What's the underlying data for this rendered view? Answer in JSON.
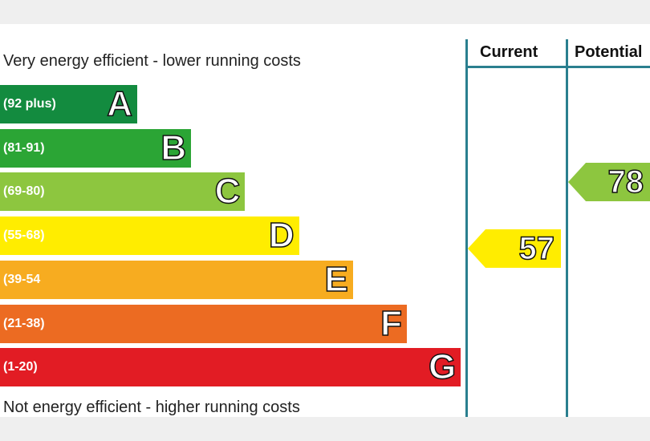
{
  "chart_data": {
    "type": "bar",
    "top_caption": "Very energy efficient - lower running costs",
    "bottom_caption": "Not energy efficient - higher running costs",
    "bands": [
      {
        "letter": "A",
        "range": "(92 plus)",
        "color": "#138b3f"
      },
      {
        "letter": "B",
        "range": "(81-91)",
        "color": "#2ba535"
      },
      {
        "letter": "C",
        "range": "(69-80)",
        "color": "#8dc63f"
      },
      {
        "letter": "D",
        "range": "(55-68)",
        "color": "#ffed00"
      },
      {
        "letter": "E",
        "range": "(39-54",
        "color": "#f7ac20"
      },
      {
        "letter": "F",
        "range": "(21-38)",
        "color": "#ec6b22"
      },
      {
        "letter": "G",
        "range": "(1-20)",
        "color": "#e21c24"
      }
    ],
    "columns": {
      "current": "Current",
      "potential": "Potential"
    },
    "current": {
      "value": "57",
      "band": "D",
      "color": "#ffed00"
    },
    "potential": {
      "value": "78",
      "band": "C",
      "color": "#8dc63f"
    }
  }
}
